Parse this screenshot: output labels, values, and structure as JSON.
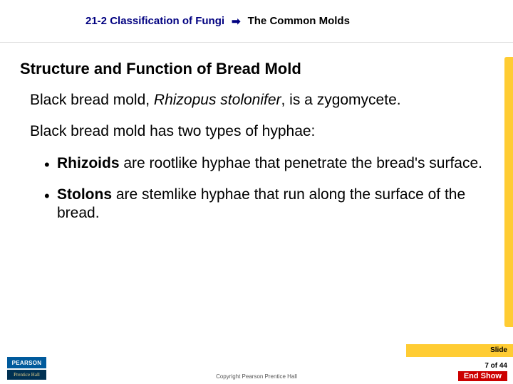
{
  "header": {
    "chapter": "21-2 Classification of Fungi",
    "topic": "The Common Molds"
  },
  "heading": "Structure and Function of Bread Mold",
  "para1_pre": "Black bread mold, ",
  "para1_italic": "Rhizopus stolonifer",
  "para1_post": ", is a zygomycete.",
  "para2": "Black bread mold has two types of hyphae:",
  "bullets": [
    {
      "term": "Rhizoids",
      "text": " are rootlike hyphae that penetrate the bread's surface."
    },
    {
      "term": "Stolons",
      "text": " are stemlike hyphae that run along the surface of the bread."
    }
  ],
  "footer": {
    "slide_label": "Slide",
    "slide_pos": "7 of 44",
    "end_show": "End Show",
    "copyright": "Copyright Pearson Prentice Hall",
    "logo_top": "PEARSON",
    "logo_bottom": "Prentice Hall"
  },
  "colors": {
    "accent_yellow": "#ffcc33",
    "header_blue": "#000080",
    "end_show_red": "#cc0000",
    "pearson_blue": "#005a9c",
    "ph_navy": "#003152"
  }
}
